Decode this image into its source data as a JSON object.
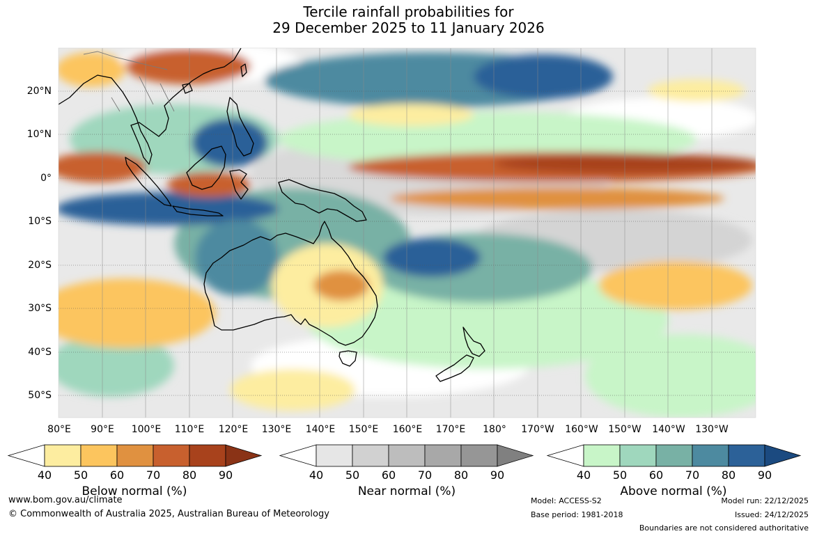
{
  "title": {
    "line1": "Tercile rainfall probabilities for",
    "line2": "29 December 2025 to 11 January 2026"
  },
  "map": {
    "lat_labels": [
      "20°N",
      "10°N",
      "0°",
      "10°S",
      "20°S",
      "30°S",
      "40°S",
      "50°S"
    ],
    "lon_labels": [
      "80°E",
      "90°E",
      "100°E",
      "110°E",
      "120°E",
      "130°E",
      "140°E",
      "150°E",
      "160°E",
      "170°E",
      "180°",
      "170°W",
      "160°W",
      "150°W",
      "140°W",
      "130°W"
    ]
  },
  "legends": [
    {
      "id": "below",
      "title": "Below normal (%)",
      "ticks": [
        "40",
        "50",
        "60",
        "70",
        "80",
        "90"
      ],
      "colors": [
        "#ffffff",
        "#fdeda0",
        "#fcc55e",
        "#e09140",
        "#c8602e",
        "#a8421c",
        "#8a3316"
      ]
    },
    {
      "id": "near",
      "title": "Near normal (%)",
      "ticks": [
        "40",
        "50",
        "60",
        "70",
        "80",
        "90"
      ],
      "colors": [
        "#ffffff",
        "#e6e6e6",
        "#d1d1d1",
        "#bdbdbd",
        "#a8a8a8",
        "#969696",
        "#808080"
      ]
    },
    {
      "id": "above",
      "title": "Above normal (%)",
      "ticks": [
        "40",
        "50",
        "60",
        "70",
        "80",
        "90"
      ],
      "colors": [
        "#ffffff",
        "#c8f5c8",
        "#9fd7bd",
        "#78b1a5",
        "#4d8aa0",
        "#2c6198",
        "#1b4a80"
      ]
    }
  ],
  "footer": {
    "website": "www.bom.gov.au/climate",
    "copyright": "© Commonwealth of Australia 2025, Australian Bureau of Meteorology",
    "model": "Model: ACCESS-S2",
    "base_period": "Base period: 1981-2018",
    "model_run": "Model run: 22/12/2025",
    "issued": "Issued: 24/12/2025",
    "boundaries": "Boundaries are not considered authoritative"
  }
}
